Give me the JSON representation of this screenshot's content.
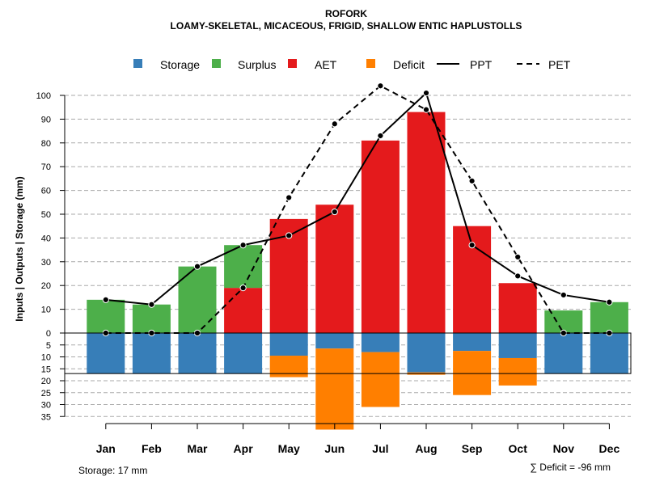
{
  "chart_data": {
    "type": "bar",
    "title": "ROFORK",
    "subtitle": "LOAMY-SKELETAL, MICACEOUS, FRIGID, SHALLOW ENTIC HAPLUSTOLLS",
    "ylabel": "Inputs | Outputs | Storage    (mm)",
    "categories": [
      "Jan",
      "Feb",
      "Mar",
      "Apr",
      "May",
      "Jun",
      "Jul",
      "Aug",
      "Sep",
      "Oct",
      "Nov",
      "Dec"
    ],
    "ylim_top": [
      0,
      100
    ],
    "ylim_bottom": [
      0,
      35
    ],
    "yticks_top": [
      "0",
      "10",
      "20",
      "30",
      "40",
      "50",
      "60",
      "70",
      "80",
      "90",
      "100"
    ],
    "yticks_bottom": [
      "5",
      "10",
      "15",
      "20",
      "25",
      "30",
      "35"
    ],
    "colors": {
      "storage": "#377EB8",
      "surplus": "#4DAF4A",
      "aet": "#E41A1C",
      "deficit": "#FF7F00",
      "line": "#000000",
      "grid": "#AAAAAA"
    },
    "legend": {
      "storage": "Storage",
      "surplus": "Surplus",
      "aet": "AET",
      "deficit": "Deficit",
      "ppt": "PPT",
      "pet": "PET"
    },
    "series": {
      "aet": [
        0,
        0,
        0,
        19,
        48,
        54,
        81,
        93,
        45,
        21,
        0,
        0
      ],
      "surplus": [
        14,
        12,
        28,
        18,
        0,
        0,
        0,
        0,
        0,
        0,
        9.5,
        13
      ],
      "storage": [
        17,
        17,
        17,
        17,
        9.5,
        6.5,
        8,
        16.5,
        7.5,
        10.5,
        17,
        17
      ],
      "deficit": [
        0,
        0,
        0,
        0,
        9,
        34,
        23,
        1,
        18.5,
        11.5,
        0,
        0
      ],
      "ppt": [
        14,
        12,
        28,
        37,
        41,
        51,
        83,
        101,
        37,
        24,
        16,
        13
      ],
      "pet": [
        0,
        0,
        0,
        19,
        57,
        88,
        104,
        94,
        64,
        32,
        0,
        0
      ]
    },
    "footer_storage": "Storage: 17 mm",
    "footer_deficit": "∑ Deficit = -96 mm"
  }
}
